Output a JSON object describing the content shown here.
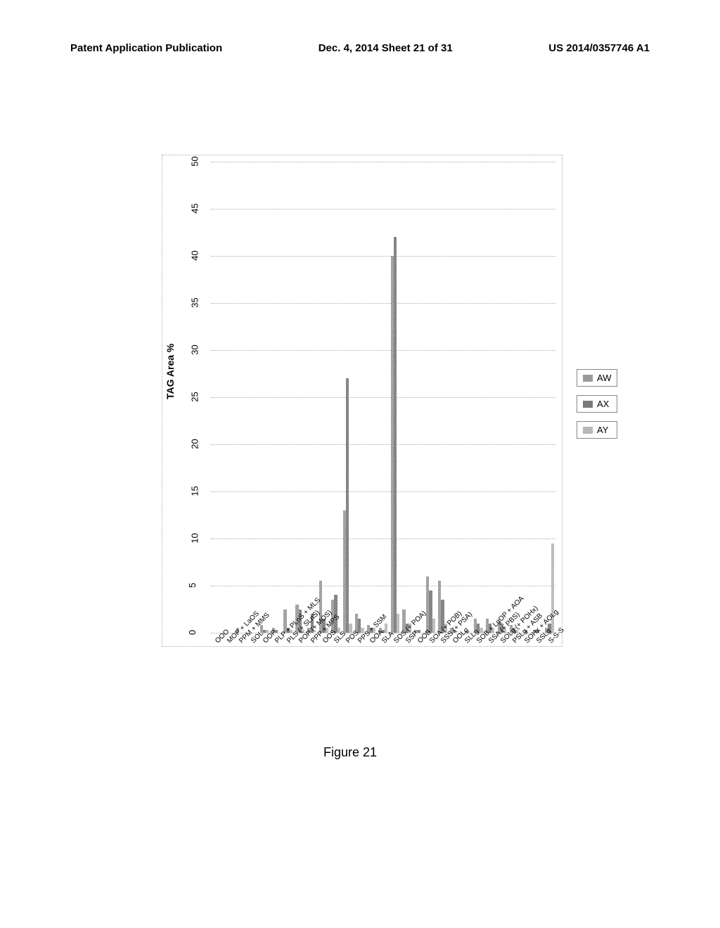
{
  "header": {
    "left": "Patent Application Publication",
    "center": "Dec. 4, 2014   Sheet 21 of 31",
    "right": "US 2014/0357746 A1"
  },
  "chart": {
    "type": "bar",
    "orientation": "horizontal",
    "y_axis_label": "TAG Area %",
    "x_ticks": [
      0,
      5,
      10,
      15,
      20,
      25,
      30,
      35,
      40,
      45,
      50
    ],
    "x_max": 50,
    "series": [
      {
        "name": "AW",
        "color": "#9a9a9a"
      },
      {
        "name": "AX",
        "color": "#7a7a7a"
      },
      {
        "name": "AY",
        "color": "#b8b8b8"
      }
    ],
    "categories": [
      {
        "label": "OOO",
        "values": [
          0,
          0,
          0
        ]
      },
      {
        "label": "MOP + LaOS",
        "values": [
          0,
          0,
          0
        ]
      },
      {
        "label": "PPM + MMS",
        "values": [
          0.5,
          0,
          0
        ]
      },
      {
        "label": "SOL",
        "values": [
          0,
          0,
          0
        ]
      },
      {
        "label": "OOP",
        "values": [
          0.8,
          0.3,
          0.3
        ]
      },
      {
        "label": "PLP + PLnS + MLS",
        "values": [
          0.5,
          0.3,
          0
        ]
      },
      {
        "label": "PLS (+ SLnS)",
        "values": [
          2.5,
          0.5,
          0.3
        ]
      },
      {
        "label": "POP (+ MOS)",
        "values": [
          3,
          2.5,
          0.3
        ]
      },
      {
        "label": "PPP + MPS",
        "values": [
          0.5,
          2,
          0
        ]
      },
      {
        "label": "OOS",
        "values": [
          5.5,
          1.5,
          0.5
        ]
      },
      {
        "label": "SLS",
        "values": [
          3.5,
          4,
          0.5
        ]
      },
      {
        "label": "POS",
        "values": [
          13,
          27,
          1
        ]
      },
      {
        "label": "PPS + SSM",
        "values": [
          2,
          1.5,
          0.5
        ]
      },
      {
        "label": "OOA",
        "values": [
          0.8,
          0.5,
          0.5
        ]
      },
      {
        "label": "SLA",
        "values": [
          0.5,
          0.3,
          1
        ]
      },
      {
        "label": "SOS (+ POA)",
        "values": [
          40,
          42,
          2
        ]
      },
      {
        "label": "SSP",
        "values": [
          2.5,
          1,
          1
        ]
      },
      {
        "label": "OOB",
        "values": [
          0.3,
          0.3,
          0
        ]
      },
      {
        "label": "SOA (+ POB)",
        "values": [
          6,
          4.5,
          1.5
        ]
      },
      {
        "label": "SSS (+ PSA)",
        "values": [
          5.5,
          3.5,
          1
        ]
      },
      {
        "label": "OOLg",
        "values": [
          0.5,
          0.3,
          0
        ]
      },
      {
        "label": "SLLg",
        "values": [
          0,
          0.2,
          0
        ]
      },
      {
        "label": "SOB + LgOP + AOA",
        "values": [
          1.5,
          1,
          0.5
        ]
      },
      {
        "label": "SSA (+ PBS)",
        "values": [
          1.5,
          1,
          0.5
        ]
      },
      {
        "label": "SOLg (+ POHx)",
        "values": [
          1.2,
          1,
          0.6
        ]
      },
      {
        "label": "PSLg + ASB",
        "values": [
          0.8,
          0.5,
          0.3
        ]
      },
      {
        "label": "SOHx + AOLg",
        "values": [
          0,
          0.3,
          0
        ]
      },
      {
        "label": "SSLg",
        "values": [
          0.3,
          0.3,
          0
        ]
      },
      {
        "label": "S-S-S",
        "values": [
          0.5,
          1,
          9.5
        ]
      }
    ]
  },
  "legend_labels": [
    "AW",
    "AX",
    "AY"
  ],
  "caption": "Figure 21"
}
